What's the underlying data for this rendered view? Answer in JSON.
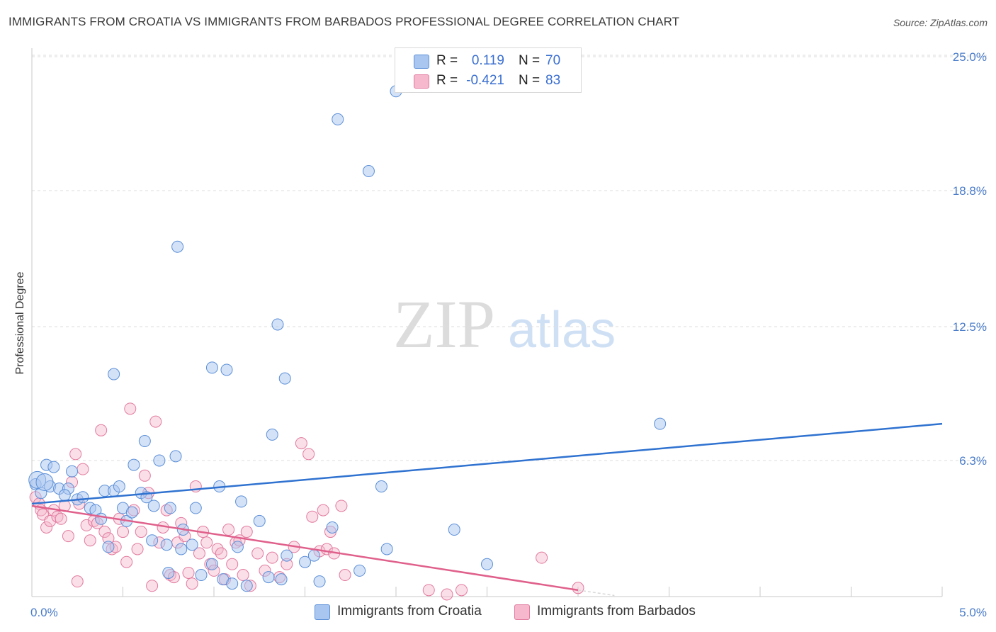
{
  "header": {
    "title": "IMMIGRANTS FROM CROATIA VS IMMIGRANTS FROM BARBADOS PROFESSIONAL DEGREE CORRELATION CHART",
    "source": "Source: ZipAtlas.com"
  },
  "watermark": {
    "zip": "ZIP",
    "atlas": "atlas"
  },
  "legend": {
    "rows": [
      {
        "r_label": "R =",
        "r_value": "0.119",
        "n_label": "N =",
        "n_value": "70",
        "color": "#a9c6f0"
      },
      {
        "r_label": "R =",
        "r_value": "-0.421",
        "n_label": "N =",
        "n_value": "83",
        "color": "#f5b8cc"
      }
    ]
  },
  "bottom_legend": {
    "croatia": "Immigrants from Croatia",
    "barbados": "Immigrants from Barbados"
  },
  "chart_data": {
    "type": "scatter",
    "title": "IMMIGRANTS FROM CROATIA VS IMMIGRANTS FROM BARBADOS PROFESSIONAL DEGREE CORRELATION CHART",
    "xlabel": "",
    "ylabel": "Professional Degree",
    "xlim": [
      0.0,
      5.0
    ],
    "ylim": [
      0.0,
      25.0
    ],
    "x_tick_labels": [
      "0.0%",
      "5.0%"
    ],
    "y_ticks": [
      6.3,
      12.5,
      18.8,
      25.0
    ],
    "y_tick_labels": [
      "6.3%",
      "12.5%",
      "18.8%",
      "25.0%"
    ],
    "grid": true,
    "legend_position": "top-center",
    "colors": {
      "croatia_fill": "#a9c6f0",
      "croatia_stroke": "#5b8fd8",
      "croatia_line": "#2f72d0",
      "barbados_fill": "#f5b8cc",
      "barbados_stroke": "#e27a9f",
      "barbados_line": "#e0608c"
    },
    "series": [
      {
        "name": "Immigrants from Croatia",
        "trend": {
          "x": [
            0.0,
            5.0
          ],
          "y": [
            4.3,
            8.0
          ]
        },
        "points": [
          [
            0.02,
            5.2
          ],
          [
            0.05,
            4.8
          ],
          [
            0.1,
            5.1
          ],
          [
            0.08,
            6.1
          ],
          [
            0.12,
            6.0
          ],
          [
            0.15,
            5.0
          ],
          [
            0.2,
            5.0
          ],
          [
            0.22,
            5.8
          ],
          [
            0.25,
            4.5
          ],
          [
            0.28,
            4.6
          ],
          [
            0.32,
            4.1
          ],
          [
            0.35,
            4.0
          ],
          [
            0.38,
            3.6
          ],
          [
            0.4,
            4.9
          ],
          [
            0.42,
            2.3
          ],
          [
            0.45,
            4.9
          ],
          [
            0.45,
            10.3
          ],
          [
            0.48,
            5.1
          ],
          [
            0.5,
            4.1
          ],
          [
            0.52,
            3.5
          ],
          [
            0.56,
            6.1
          ],
          [
            0.6,
            4.8
          ],
          [
            0.62,
            7.2
          ],
          [
            0.63,
            4.6
          ],
          [
            0.66,
            2.6
          ],
          [
            0.67,
            4.2
          ],
          [
            0.7,
            6.3
          ],
          [
            0.74,
            2.4
          ],
          [
            0.75,
            1.1
          ],
          [
            0.76,
            4.1
          ],
          [
            0.79,
            6.5
          ],
          [
            0.8,
            16.2
          ],
          [
            0.82,
            2.2
          ],
          [
            0.83,
            3.1
          ],
          [
            0.88,
            2.4
          ],
          [
            0.9,
            4.1
          ],
          [
            0.93,
            1.0
          ],
          [
            0.99,
            1.5
          ],
          [
            0.99,
            10.6
          ],
          [
            1.03,
            5.1
          ],
          [
            1.05,
            0.8
          ],
          [
            1.07,
            10.5
          ],
          [
            1.1,
            0.6
          ],
          [
            1.13,
            2.3
          ],
          [
            1.15,
            4.4
          ],
          [
            1.18,
            0.5
          ],
          [
            1.25,
            3.5
          ],
          [
            1.3,
            0.9
          ],
          [
            1.32,
            7.5
          ],
          [
            1.35,
            12.6
          ],
          [
            1.37,
            0.8
          ],
          [
            1.39,
            10.1
          ],
          [
            1.4,
            1.9
          ],
          [
            1.5,
            1.6
          ],
          [
            1.55,
            1.9
          ],
          [
            1.58,
            0.7
          ],
          [
            1.65,
            3.2
          ],
          [
            1.68,
            22.1
          ],
          [
            1.8,
            1.2
          ],
          [
            1.85,
            19.7
          ],
          [
            1.92,
            5.1
          ],
          [
            1.95,
            2.2
          ],
          [
            2.0,
            23.4
          ],
          [
            2.32,
            3.1
          ],
          [
            2.5,
            1.5
          ],
          [
            3.45,
            8.0
          ],
          [
            0.03,
            5.4
          ],
          [
            0.07,
            5.3
          ],
          [
            0.18,
            4.7
          ],
          [
            0.55,
            3.9
          ]
        ]
      },
      {
        "name": "Immigrants from Barbados",
        "trend": {
          "x": [
            0.0,
            3.0
          ],
          "y": [
            4.2,
            0.3
          ]
        },
        "trend_dashed": {
          "x": [
            3.0,
            3.2
          ],
          "y": [
            0.3,
            0.05
          ]
        },
        "points": [
          [
            0.02,
            4.6
          ],
          [
            0.04,
            4.3
          ],
          [
            0.05,
            4.0
          ],
          [
            0.06,
            3.8
          ],
          [
            0.08,
            3.2
          ],
          [
            0.1,
            3.5
          ],
          [
            0.12,
            4.0
          ],
          [
            0.14,
            3.7
          ],
          [
            0.16,
            3.6
          ],
          [
            0.18,
            4.2
          ],
          [
            0.2,
            2.8
          ],
          [
            0.22,
            5.3
          ],
          [
            0.24,
            6.6
          ],
          [
            0.26,
            4.3
          ],
          [
            0.28,
            5.9
          ],
          [
            0.3,
            3.3
          ],
          [
            0.32,
            2.6
          ],
          [
            0.34,
            3.5
          ],
          [
            0.36,
            3.4
          ],
          [
            0.38,
            7.7
          ],
          [
            0.4,
            3.0
          ],
          [
            0.42,
            2.7
          ],
          [
            0.44,
            2.2
          ],
          [
            0.46,
            2.3
          ],
          [
            0.48,
            3.6
          ],
          [
            0.5,
            3.0
          ],
          [
            0.52,
            1.6
          ],
          [
            0.54,
            8.7
          ],
          [
            0.56,
            4.0
          ],
          [
            0.58,
            2.2
          ],
          [
            0.6,
            3.0
          ],
          [
            0.62,
            5.6
          ],
          [
            0.64,
            4.8
          ],
          [
            0.66,
            0.5
          ],
          [
            0.68,
            8.1
          ],
          [
            0.7,
            2.5
          ],
          [
            0.72,
            3.2
          ],
          [
            0.74,
            4.0
          ],
          [
            0.76,
            1.0
          ],
          [
            0.78,
            0.9
          ],
          [
            0.8,
            2.5
          ],
          [
            0.82,
            3.4
          ],
          [
            0.84,
            2.8
          ],
          [
            0.86,
            1.1
          ],
          [
            0.88,
            0.6
          ],
          [
            0.9,
            5.1
          ],
          [
            0.92,
            2.0
          ],
          [
            0.94,
            3.0
          ],
          [
            0.96,
            2.5
          ],
          [
            0.98,
            1.5
          ],
          [
            1.0,
            1.2
          ],
          [
            1.02,
            2.2
          ],
          [
            1.04,
            2.0
          ],
          [
            1.06,
            0.8
          ],
          [
            1.08,
            3.1
          ],
          [
            1.1,
            1.5
          ],
          [
            1.12,
            2.5
          ],
          [
            1.14,
            2.6
          ],
          [
            1.16,
            1.0
          ],
          [
            1.18,
            3.0
          ],
          [
            1.2,
            0.5
          ],
          [
            1.24,
            2.0
          ],
          [
            1.28,
            1.2
          ],
          [
            1.32,
            1.8
          ],
          [
            1.36,
            0.9
          ],
          [
            1.4,
            1.5
          ],
          [
            1.44,
            2.3
          ],
          [
            1.48,
            7.1
          ],
          [
            1.52,
            6.6
          ],
          [
            1.54,
            3.7
          ],
          [
            1.58,
            2.1
          ],
          [
            1.6,
            4.0
          ],
          [
            1.62,
            2.2
          ],
          [
            1.64,
            3.0
          ],
          [
            1.66,
            2.0
          ],
          [
            1.7,
            4.2
          ],
          [
            1.72,
            1.0
          ],
          [
            2.18,
            0.3
          ],
          [
            2.28,
            0.1
          ],
          [
            2.36,
            0.3
          ],
          [
            2.8,
            1.8
          ],
          [
            3.0,
            0.4
          ],
          [
            0.25,
            0.7
          ]
        ]
      }
    ]
  }
}
